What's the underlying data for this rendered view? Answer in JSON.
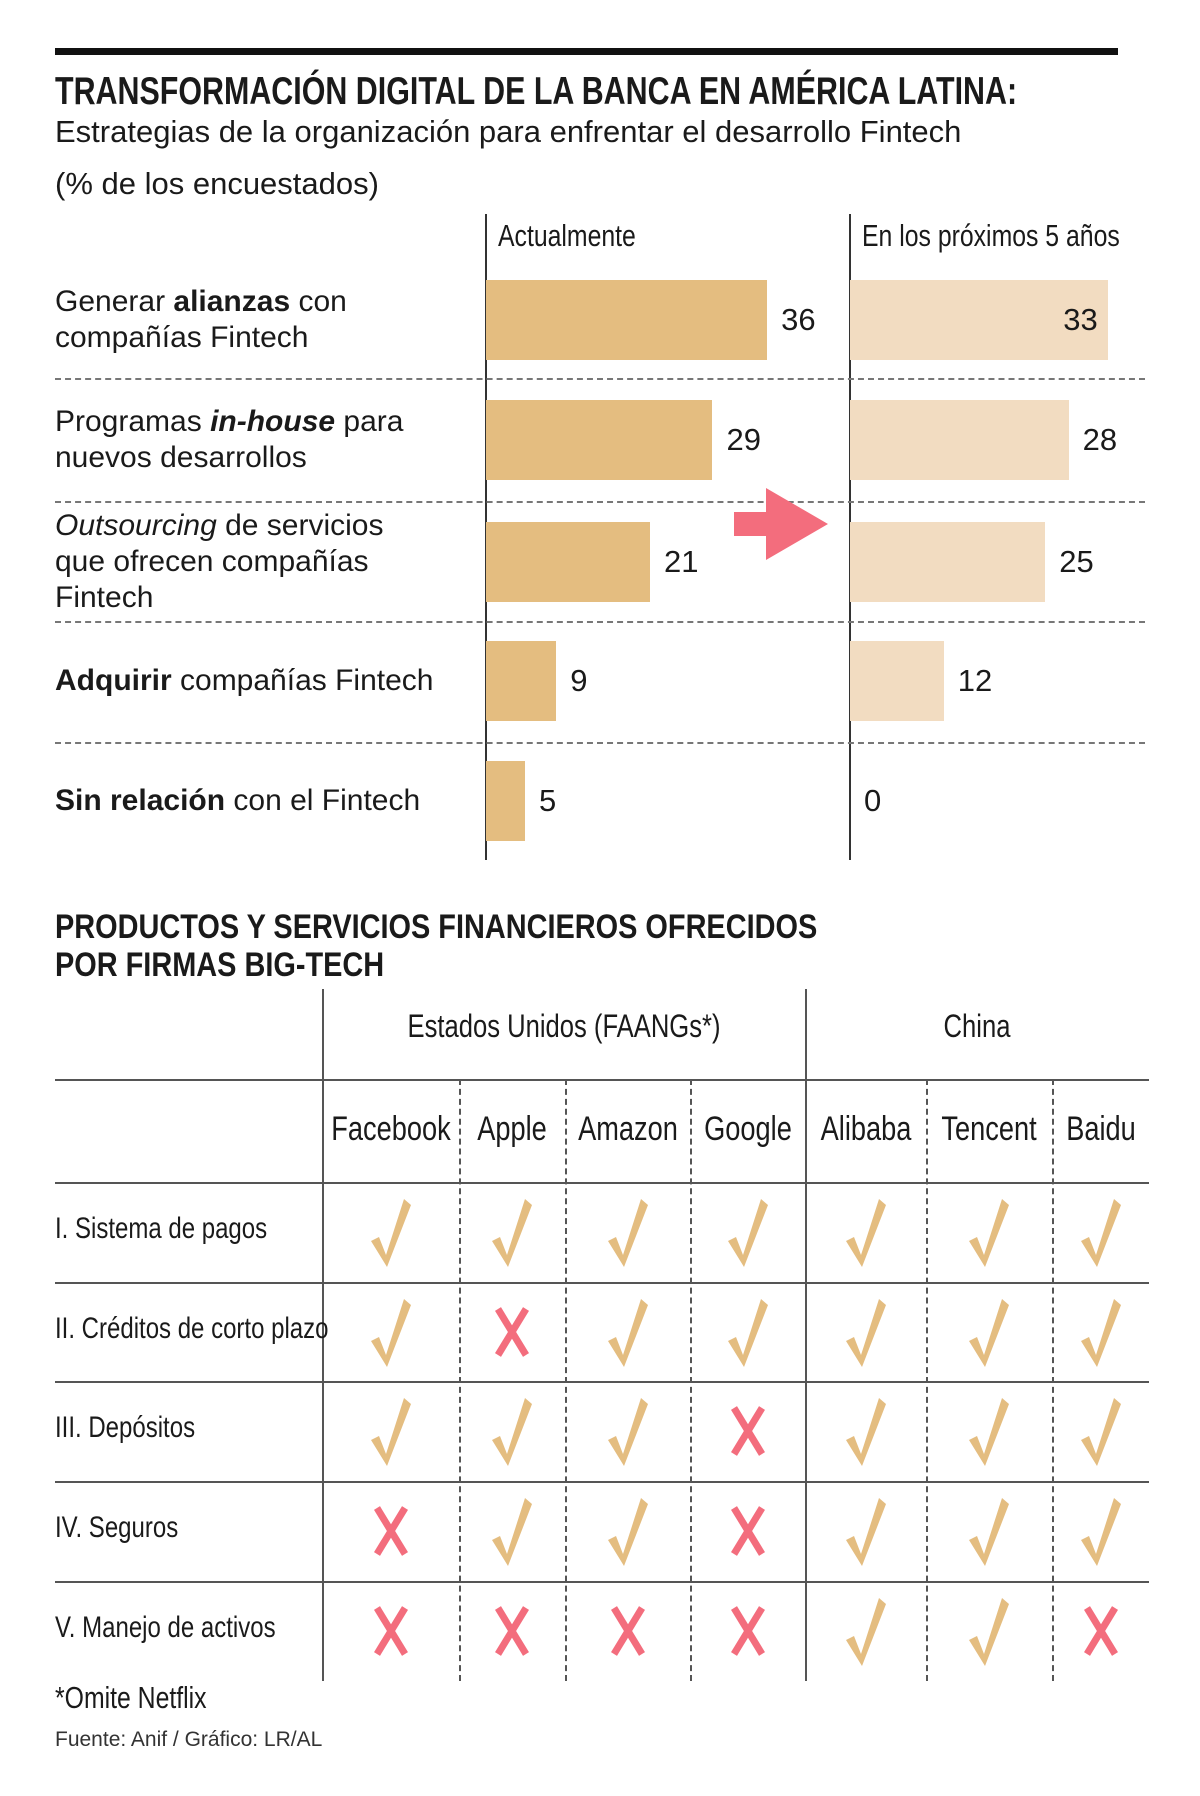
{
  "header": {
    "title": "TRANSFORMACIÓN DIGITAL DE LA BANCA EN AMÉRICA LATINA:",
    "subtitle": "Estrategias de la organización para enfrentar el desarrollo Fintech",
    "unit": "(% de los encuestados)"
  },
  "colors": {
    "current": "#e4bd80",
    "future": "#f2dcc1",
    "accent": "#f36d7d",
    "check": "#e4bd80",
    "cross": "#f36d7d"
  },
  "chart_data": {
    "type": "bar",
    "title": "TRANSFORMACIÓN DIGITAL DE LA BANCA EN AMÉRICA LATINA: Estrategias de la organización para enfrentar el desarrollo Fintech",
    "ylabel": "(% de los encuestados)",
    "categories": [
      "Generar alianzas con compañías Fintech",
      "Programas in-house para nuevos desarrollos",
      "Outsourcing de servicios que ofrecen compañías Fintech",
      "Adquirir compañías Fintech",
      "Sin relación con el Fintech"
    ],
    "series": [
      {
        "name": "Actualmente",
        "values": [
          36,
          29,
          21,
          9,
          5
        ]
      },
      {
        "name": "En los próximos 5 años",
        "values": [
          33,
          28,
          25,
          12,
          0
        ]
      }
    ],
    "xlim": [
      0,
      40
    ]
  },
  "row_labels": [
    [
      [
        [
          "Generar ",
          "n"
        ],
        [
          "alianzas",
          "b"
        ],
        [
          " con",
          "n"
        ]
      ],
      [
        [
          "compañías Fintech",
          "n"
        ]
      ]
    ],
    [
      [
        [
          "Programas ",
          "n"
        ],
        [
          "in-house",
          "bi"
        ],
        [
          " para",
          "n"
        ]
      ],
      [
        [
          "nuevos desarrollos",
          "n"
        ]
      ]
    ],
    [
      [
        [
          "Outsourcing",
          "i"
        ],
        [
          " de servicios",
          "n"
        ]
      ],
      [
        [
          "que ofrecen compañías",
          "n"
        ]
      ],
      [
        [
          "Fintech",
          "n"
        ]
      ]
    ],
    [
      [
        [
          "Adquirir",
          "b"
        ],
        [
          " compañías Fintech",
          "n"
        ]
      ]
    ],
    [
      [
        [
          "Sin relación",
          "b"
        ],
        [
          " con el Fintech",
          "n"
        ]
      ]
    ]
  ],
  "table": {
    "title_lines": [
      "PRODUCTOS Y SERVICIOS FINANCIEROS OFRECIDOS",
      "POR FIRMAS BIG-TECH"
    ],
    "groups": [
      "Estados Unidos (FAANGs*)",
      "China"
    ],
    "companies": [
      "Facebook",
      "Apple",
      "Amazon",
      "Google",
      "Alibaba",
      "Tencent",
      "Baidu"
    ],
    "rows": [
      {
        "label": "I. Sistema de pagos",
        "values": [
          true,
          true,
          true,
          true,
          true,
          true,
          true
        ]
      },
      {
        "label": "II. Créditos de corto plazo",
        "values": [
          true,
          false,
          true,
          true,
          true,
          true,
          true
        ]
      },
      {
        "label": "III. Depósitos",
        "values": [
          true,
          true,
          true,
          false,
          true,
          true,
          true
        ]
      },
      {
        "label": "IV. Seguros",
        "values": [
          false,
          true,
          true,
          false,
          true,
          true,
          true
        ]
      },
      {
        "label": "V. Manejo de activos",
        "values": [
          false,
          false,
          false,
          false,
          true,
          true,
          false
        ]
      }
    ],
    "footnote": "*Omite Netflix",
    "source": "Fuente: Anif / Gráfico: LR/AL"
  }
}
